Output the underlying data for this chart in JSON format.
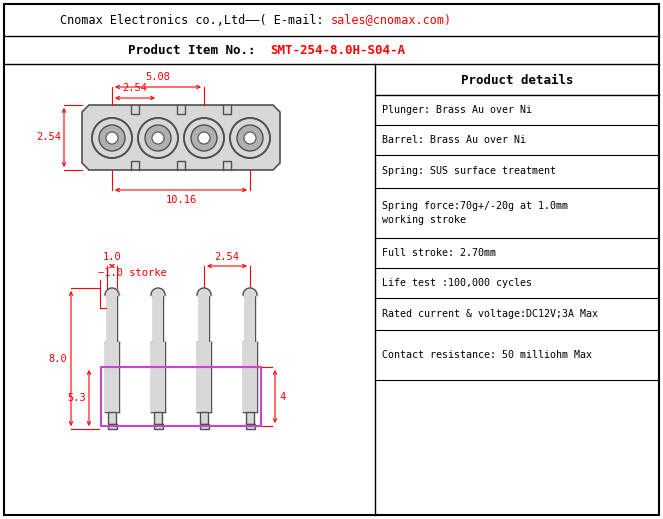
{
  "fig_width": 6.63,
  "fig_height": 5.19,
  "dpi": 100,
  "bg_color": "#ffffff",
  "border_color": "#000000",
  "dim_color": "#ff0000",
  "draw_color": "#505050",
  "magenta_color": "#cc44cc",
  "details": [
    [
      "Plunger: Brass Au over Ni",
      95,
      125
    ],
    [
      "Barrel: Brass Au over Ni",
      125,
      155
    ],
    [
      "Spring: SUS surface treatment",
      155,
      188
    ],
    [
      "Spring force:70g+/-20g at 1.0mm\nworking stroke",
      188,
      238
    ],
    [
      "Full stroke: 2.70mm",
      238,
      268
    ],
    [
      "Life test :100,000 cycles",
      268,
      298
    ],
    [
      "Rated current & voltage:DC12V;3A Max",
      298,
      330
    ],
    [
      "Contact resistance: 50 milliohm Max",
      330,
      380
    ]
  ]
}
